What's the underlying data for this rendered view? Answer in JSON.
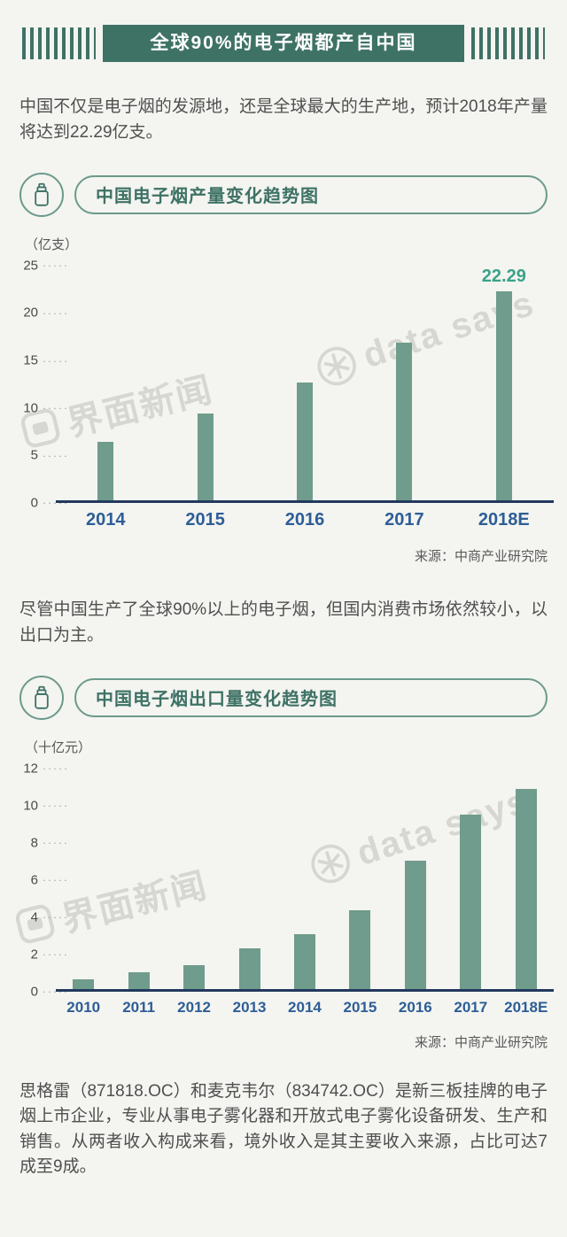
{
  "header": {
    "title": "全球90%的电子烟都产自中国"
  },
  "paragraphs": {
    "intro": "中国不仅是电子烟的发源地，还是全球最大的生产地，预计2018年产量将达到22.29亿支。",
    "middle": "尽管中国生产了全球90%以上的电子烟，但国内消费市场依然较小，以出口为主。",
    "footer": "思格雷（871818.OC）和麦克韦尔（834742.OC）是新三板挂牌的电子烟上市企业，专业从事电子雾化器和开放式电子雾化设备研发、生产和销售。从两者收入构成来看，境外收入是其主要收入来源，占比可达7成至9成。"
  },
  "watermarks": {
    "jiemian": "界面新闻",
    "datasays": "data says"
  },
  "colors": {
    "accent_green": "#3e7265",
    "pill_border": "#6b9a8b",
    "bar": "#6f9c8c",
    "year_blue": "#2d5e96",
    "value_teal": "#3aa289",
    "axis_navy": "#22395e",
    "text": "#4f4f4f",
    "background": "#f4f4f1",
    "watermark": "#d6d6d2",
    "banner_text": "#ffffff"
  },
  "chart_data": [
    {
      "type": "bar",
      "title": "中国电子烟产量变化趋势图",
      "unit_label": "（亿支）",
      "categories": [
        "2014",
        "2015",
        "2016",
        "2017",
        "2018E"
      ],
      "values": [
        6.2,
        9.2,
        12.5,
        16.8,
        22.29
      ],
      "value_labels": [
        null,
        null,
        null,
        null,
        "22.29"
      ],
      "ylim": [
        0,
        25
      ],
      "yticks": [
        0,
        5,
        10,
        15,
        20,
        25
      ],
      "grid": false,
      "legend": "none",
      "source": "来源：中商产业研究院"
    },
    {
      "type": "bar",
      "title": "中国电子烟出口量变化趋势图",
      "unit_label": "（十亿元）",
      "categories": [
        "2010",
        "2011",
        "2012",
        "2013",
        "2014",
        "2015",
        "2016",
        "2017",
        "2018E"
      ],
      "values": [
        0.5,
        0.9,
        1.3,
        2.2,
        3.0,
        4.3,
        7.0,
        9.5,
        10.9
      ],
      "value_labels": [
        null,
        null,
        null,
        null,
        null,
        null,
        null,
        null,
        null
      ],
      "ylim": [
        0,
        12
      ],
      "yticks": [
        0,
        2,
        4,
        6,
        8,
        10,
        12
      ],
      "grid": false,
      "legend": "none",
      "source": "来源：中商产业研究院"
    }
  ]
}
